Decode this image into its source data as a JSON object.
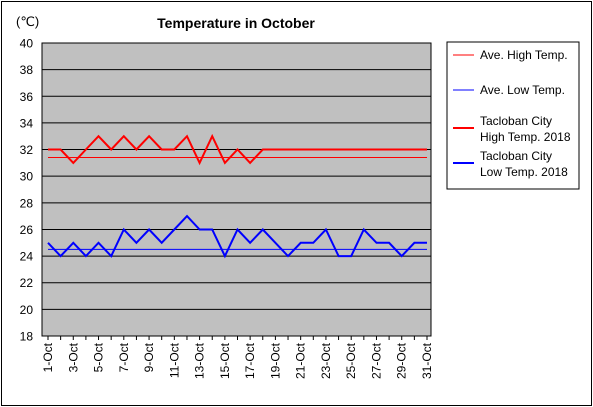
{
  "chart_data": {
    "type": "line",
    "title": "Temperature in October",
    "unit_label": "(℃)",
    "ylim": [
      18,
      40
    ],
    "yticks": [
      18,
      20,
      22,
      24,
      26,
      28,
      30,
      32,
      34,
      36,
      38,
      40
    ],
    "grid": true,
    "legend_position": "right",
    "x": [
      1,
      2,
      3,
      4,
      5,
      6,
      7,
      8,
      9,
      10,
      11,
      12,
      13,
      14,
      15,
      16,
      17,
      18,
      19,
      20,
      21,
      22,
      23,
      24,
      25,
      26,
      27,
      28,
      29,
      30,
      31
    ],
    "xtick_labels": [
      "1-Oct",
      "3-Oct",
      "5-Oct",
      "7-Oct",
      "9-Oct",
      "11-Oct",
      "13-Oct",
      "15-Oct",
      "17-Oct",
      "19-Oct",
      "21-Oct",
      "23-Oct",
      "25-Oct",
      "27-Oct",
      "29-Oct",
      "31-Oct"
    ],
    "xtick_days": [
      1,
      3,
      5,
      7,
      9,
      11,
      13,
      15,
      17,
      19,
      21,
      23,
      25,
      27,
      29,
      31
    ],
    "series": [
      {
        "name": "Ave. High Temp.",
        "color": "#ff0000",
        "width": 1,
        "values": [
          31.4,
          31.4,
          31.4,
          31.4,
          31.4,
          31.4,
          31.4,
          31.4,
          31.4,
          31.4,
          31.4,
          31.4,
          31.4,
          31.4,
          31.4,
          31.4,
          31.4,
          31.4,
          31.4,
          31.4,
          31.4,
          31.4,
          31.4,
          31.4,
          31.4,
          31.4,
          31.4,
          31.4,
          31.4,
          31.4,
          31.4
        ]
      },
      {
        "name": "Ave. Low Temp.",
        "color": "#0000ff",
        "width": 1,
        "values": [
          24.5,
          24.5,
          24.5,
          24.5,
          24.5,
          24.5,
          24.5,
          24.5,
          24.5,
          24.5,
          24.5,
          24.5,
          24.5,
          24.5,
          24.5,
          24.5,
          24.5,
          24.5,
          24.5,
          24.5,
          24.5,
          24.5,
          24.5,
          24.5,
          24.5,
          24.5,
          24.5,
          24.5,
          24.5,
          24.5,
          24.5
        ]
      },
      {
        "name": "Tacloban City High Temp. 2018",
        "legend_lines": [
          "Tacloban City",
          "High Temp. 2018"
        ],
        "color": "#ff0000",
        "width": 2,
        "values": [
          32,
          32,
          31,
          32,
          33,
          32,
          33,
          32,
          33,
          32,
          32,
          33,
          31,
          33,
          31,
          32,
          31,
          32,
          32,
          32,
          32,
          32,
          32,
          32,
          32,
          32,
          32,
          32,
          32,
          32,
          32
        ]
      },
      {
        "name": "Tacloban City Low Temp. 2018",
        "legend_lines": [
          "Tacloban City",
          "Low Temp. 2018"
        ],
        "color": "#0000ff",
        "width": 2,
        "values": [
          25,
          24,
          25,
          24,
          25,
          24,
          26,
          25,
          26,
          25,
          26,
          27,
          26,
          26,
          24,
          26,
          25,
          26,
          25,
          24,
          25,
          25,
          26,
          24,
          24,
          26,
          25,
          25,
          24,
          25,
          25
        ]
      }
    ]
  }
}
